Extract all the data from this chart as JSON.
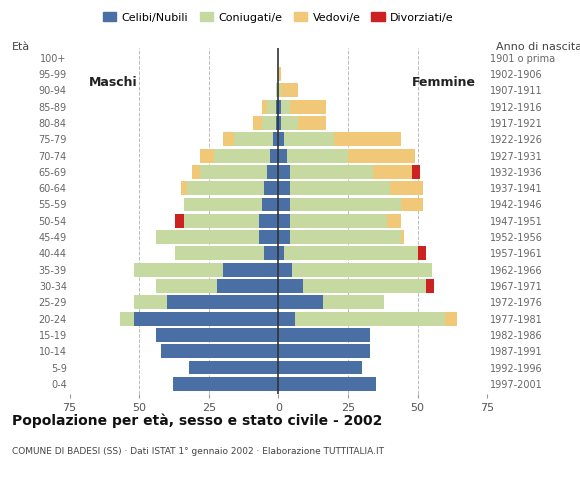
{
  "title": "Popolazione per età, sesso e stato civile - 2002",
  "subtitle": "COMUNE DI BADESI (SS) · Dati ISTAT 1° gennaio 2002 · Elaborazione TUTTITALIA.IT",
  "xlabel_left": "Maschi",
  "xlabel_right": "Femmine",
  "ylabel_left": "Età",
  "ylabel_right": "Anno di nascita",
  "xlim": 75,
  "colors": {
    "celibi": "#4a6fa5",
    "coniugati": "#c5d9a0",
    "vedovi": "#f0c878",
    "divorziati": "#cc2222"
  },
  "legend_labels": [
    "Celibi/Nubili",
    "Coniugati/e",
    "Vedovi/e",
    "Divorziati/e"
  ],
  "age_groups_bottom_to_top": [
    "0-4",
    "5-9",
    "10-14",
    "15-19",
    "20-24",
    "25-29",
    "30-34",
    "35-39",
    "40-44",
    "45-49",
    "50-54",
    "55-59",
    "60-64",
    "65-69",
    "70-74",
    "75-79",
    "80-84",
    "85-89",
    "90-94",
    "95-99",
    "100+"
  ],
  "birth_years_bottom_to_top": [
    "1997-2001",
    "1992-1996",
    "1987-1991",
    "1982-1986",
    "1977-1981",
    "1972-1976",
    "1967-1971",
    "1962-1966",
    "1957-1961",
    "1952-1956",
    "1947-1951",
    "1942-1946",
    "1937-1941",
    "1932-1936",
    "1927-1931",
    "1922-1926",
    "1917-1921",
    "1912-1916",
    "1907-1911",
    "1902-1906",
    "1901 o prima"
  ],
  "males": {
    "celibi": [
      38,
      32,
      42,
      44,
      52,
      40,
      22,
      20,
      5,
      7,
      7,
      6,
      5,
      4,
      3,
      2,
      1,
      1,
      0,
      0,
      0
    ],
    "coniugati": [
      0,
      0,
      0,
      0,
      5,
      12,
      22,
      32,
      32,
      37,
      27,
      28,
      28,
      24,
      20,
      14,
      5,
      3,
      1,
      0,
      0
    ],
    "vedovi": [
      0,
      0,
      0,
      0,
      0,
      0,
      0,
      0,
      0,
      0,
      0,
      0,
      2,
      3,
      5,
      4,
      3,
      2,
      0,
      0,
      0
    ],
    "divorziati": [
      0,
      0,
      0,
      0,
      0,
      0,
      0,
      0,
      0,
      0,
      3,
      0,
      0,
      0,
      0,
      0,
      0,
      0,
      0,
      0,
      0
    ]
  },
  "females": {
    "nubili": [
      35,
      30,
      33,
      33,
      6,
      16,
      9,
      5,
      2,
      4,
      4,
      4,
      4,
      4,
      3,
      2,
      1,
      1,
      0,
      0,
      0
    ],
    "coniugate": [
      0,
      0,
      0,
      0,
      54,
      22,
      44,
      50,
      48,
      40,
      35,
      40,
      36,
      30,
      22,
      18,
      6,
      3,
      1,
      0,
      0
    ],
    "vedove": [
      0,
      0,
      0,
      0,
      4,
      0,
      0,
      0,
      0,
      1,
      5,
      8,
      12,
      14,
      24,
      24,
      10,
      13,
      6,
      1,
      0
    ],
    "divorziate": [
      0,
      0,
      0,
      0,
      0,
      0,
      3,
      0,
      3,
      0,
      0,
      0,
      0,
      3,
      0,
      0,
      0,
      0,
      0,
      0,
      0
    ]
  }
}
